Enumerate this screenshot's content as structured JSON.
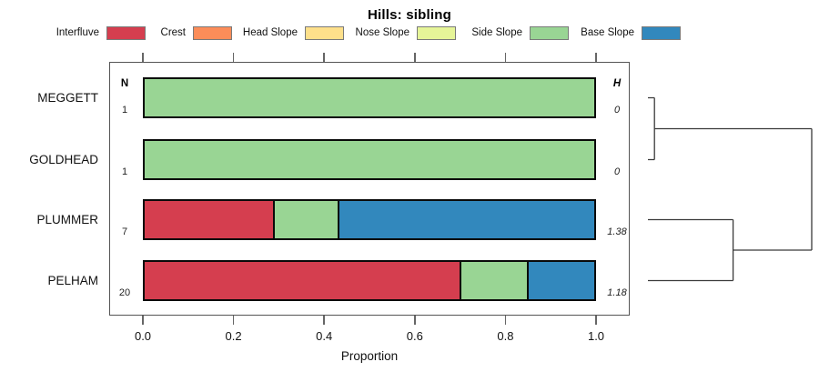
{
  "title": "Hills: sibling",
  "xlabel": "Proportion",
  "x_ticks": [
    "0.0",
    "0.2",
    "0.4",
    "0.6",
    "0.8",
    "1.0"
  ],
  "columns": {
    "n_header": "N",
    "h_header": "H"
  },
  "legend": [
    {
      "label": "Interfluve",
      "color": "#D53E4F"
    },
    {
      "label": "Crest",
      "color": "#FC8D59"
    },
    {
      "label": "Head Slope",
      "color": "#FEE08B"
    },
    {
      "label": "Nose Slope",
      "color": "#E6F598"
    },
    {
      "label": "Side Slope",
      "color": "#99D594"
    },
    {
      "label": "Base Slope",
      "color": "#3288BD"
    }
  ],
  "chart_data": {
    "type": "bar",
    "orientation": "horizontal-stacked",
    "title": "Hills: sibling",
    "xlabel": "Proportion",
    "xlim": [
      0,
      1
    ],
    "grid": false,
    "legend_position": "top",
    "categories": [
      "MEGGETT",
      "GOLDHEAD",
      "PLUMMER",
      "PELHAM"
    ],
    "n_values": [
      "1",
      "1",
      "7",
      "20"
    ],
    "h_values": [
      "0",
      "0",
      "1.38",
      "1.18"
    ],
    "series": [
      {
        "name": "Interfluve",
        "color": "#D53E4F",
        "values": [
          0,
          0,
          0.286,
          0.7
        ]
      },
      {
        "name": "Crest",
        "color": "#FC8D59",
        "values": [
          0,
          0,
          0,
          0
        ]
      },
      {
        "name": "Head Slope",
        "color": "#FEE08B",
        "values": [
          0,
          0,
          0,
          0
        ]
      },
      {
        "name": "Nose Slope",
        "color": "#E6F598",
        "values": [
          0,
          0,
          0,
          0
        ]
      },
      {
        "name": "Side Slope",
        "color": "#99D594",
        "values": [
          1,
          1,
          0.143,
          0.15
        ]
      },
      {
        "name": "Base Slope",
        "color": "#3288BD",
        "values": [
          0,
          0,
          0.571,
          0.15
        ]
      }
    ],
    "dendrogram": {
      "orientation": "right",
      "merges": [
        {
          "pair": [
            "MEGGETT",
            "GOLDHEAD"
          ],
          "relative_height": 0.04
        },
        {
          "pair": [
            "PLUMMER",
            "PELHAM"
          ],
          "relative_height": 0.52
        },
        {
          "pair": [
            "(MEGGETT,GOLDHEAD)",
            "(PLUMMER,PELHAM)"
          ],
          "relative_height": 1.0
        }
      ]
    }
  }
}
